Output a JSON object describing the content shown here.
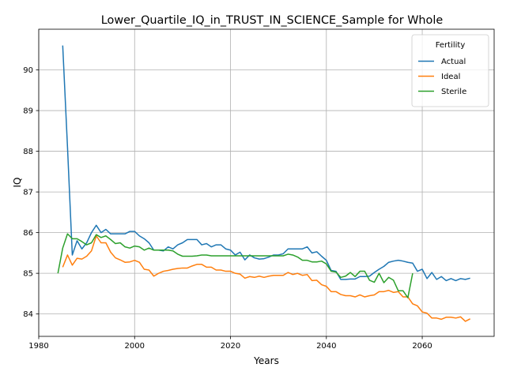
{
  "chart_data": {
    "type": "line",
    "title": "Lower_Quartile_IQ_in_TRUST_IN_SCIENCE_Sample for Whole",
    "xlabel": "Years",
    "ylabel": "IQ",
    "xlim": [
      1980,
      2075
    ],
    "ylim": [
      83.45,
      91.0
    ],
    "xticks": [
      1980,
      2000,
      2020,
      2040,
      2060
    ],
    "yticks": [
      84,
      85,
      86,
      87,
      88,
      89,
      90
    ],
    "grid": true,
    "legend": {
      "title": "Fertility",
      "placement": "top-right"
    },
    "series": [
      {
        "name": "Actual",
        "color": "#1f77b4",
        "points": [
          [
            1985,
            90.6
          ],
          [
            1986,
            88.1
          ],
          [
            1987,
            85.45
          ],
          [
            1988,
            85.8
          ],
          [
            1989,
            85.6
          ],
          [
            1990,
            85.75
          ],
          [
            1991,
            86.0
          ],
          [
            1992,
            86.18
          ],
          [
            1993,
            86.0
          ],
          [
            1994,
            86.08
          ],
          [
            1995,
            85.97
          ],
          [
            1996,
            85.97
          ],
          [
            1997,
            85.97
          ],
          [
            1998,
            85.97
          ],
          [
            1999,
            86.03
          ],
          [
            2000,
            86.03
          ],
          [
            2001,
            85.92
          ],
          [
            2002,
            85.85
          ],
          [
            2003,
            85.75
          ],
          [
            2004,
            85.57
          ],
          [
            2005,
            85.57
          ],
          [
            2006,
            85.55
          ],
          [
            2007,
            85.65
          ],
          [
            2008,
            85.6
          ],
          [
            2009,
            85.7
          ],
          [
            2010,
            85.75
          ],
          [
            2011,
            85.83
          ],
          [
            2012,
            85.83
          ],
          [
            2013,
            85.83
          ],
          [
            2014,
            85.7
          ],
          [
            2015,
            85.73
          ],
          [
            2016,
            85.65
          ],
          [
            2017,
            85.7
          ],
          [
            2018,
            85.7
          ],
          [
            2019,
            85.6
          ],
          [
            2020,
            85.57
          ],
          [
            2021,
            85.45
          ],
          [
            2022,
            85.52
          ],
          [
            2023,
            85.33
          ],
          [
            2024,
            85.45
          ],
          [
            2025,
            85.38
          ],
          [
            2026,
            85.35
          ],
          [
            2027,
            85.36
          ],
          [
            2028,
            85.4
          ],
          [
            2029,
            85.45
          ],
          [
            2030,
            85.45
          ],
          [
            2031,
            85.48
          ],
          [
            2032,
            85.6
          ],
          [
            2033,
            85.6
          ],
          [
            2034,
            85.6
          ],
          [
            2035,
            85.6
          ],
          [
            2036,
            85.65
          ],
          [
            2037,
            85.5
          ],
          [
            2038,
            85.53
          ],
          [
            2039,
            85.42
          ],
          [
            2040,
            85.32
          ],
          [
            2041,
            85.07
          ],
          [
            2042,
            85.05
          ],
          [
            2043,
            84.85
          ],
          [
            2044,
            84.85
          ],
          [
            2045,
            84.86
          ],
          [
            2046,
            84.86
          ],
          [
            2047,
            84.92
          ],
          [
            2048,
            84.92
          ],
          [
            2049,
            84.93
          ],
          [
            2050,
            85.02
          ],
          [
            2051,
            85.1
          ],
          [
            2052,
            85.17
          ],
          [
            2053,
            85.27
          ],
          [
            2054,
            85.3
          ],
          [
            2055,
            85.32
          ],
          [
            2056,
            85.3
          ],
          [
            2057,
            85.27
          ],
          [
            2058,
            85.25
          ],
          [
            2059,
            85.05
          ],
          [
            2060,
            85.1
          ],
          [
            2061,
            84.87
          ],
          [
            2062,
            85.02
          ],
          [
            2063,
            84.85
          ],
          [
            2064,
            84.92
          ],
          [
            2065,
            84.82
          ],
          [
            2066,
            84.87
          ],
          [
            2067,
            84.82
          ],
          [
            2068,
            84.87
          ],
          [
            2069,
            84.85
          ],
          [
            2070,
            84.88
          ]
        ]
      },
      {
        "name": "Ideal",
        "color": "#ff7f0e",
        "points": [
          [
            1985,
            85.15
          ],
          [
            1986,
            85.45
          ],
          [
            1987,
            85.2
          ],
          [
            1988,
            85.37
          ],
          [
            1989,
            85.35
          ],
          [
            1990,
            85.42
          ],
          [
            1991,
            85.55
          ],
          [
            1992,
            85.92
          ],
          [
            1993,
            85.75
          ],
          [
            1994,
            85.75
          ],
          [
            1995,
            85.52
          ],
          [
            1996,
            85.38
          ],
          [
            1997,
            85.33
          ],
          [
            1998,
            85.27
          ],
          [
            1999,
            85.28
          ],
          [
            2000,
            85.32
          ],
          [
            2001,
            85.27
          ],
          [
            2002,
            85.1
          ],
          [
            2003,
            85.08
          ],
          [
            2004,
            84.93
          ],
          [
            2005,
            85.0
          ],
          [
            2006,
            85.05
          ],
          [
            2007,
            85.07
          ],
          [
            2008,
            85.1
          ],
          [
            2009,
            85.12
          ],
          [
            2010,
            85.13
          ],
          [
            2011,
            85.13
          ],
          [
            2012,
            85.18
          ],
          [
            2013,
            85.22
          ],
          [
            2014,
            85.22
          ],
          [
            2015,
            85.15
          ],
          [
            2016,
            85.15
          ],
          [
            2017,
            85.08
          ],
          [
            2018,
            85.08
          ],
          [
            2019,
            85.05
          ],
          [
            2020,
            85.05
          ],
          [
            2021,
            85.0
          ],
          [
            2022,
            84.98
          ],
          [
            2023,
            84.88
          ],
          [
            2024,
            84.92
          ],
          [
            2025,
            84.9
          ],
          [
            2026,
            84.93
          ],
          [
            2027,
            84.9
          ],
          [
            2028,
            84.93
          ],
          [
            2029,
            84.95
          ],
          [
            2030,
            84.95
          ],
          [
            2031,
            84.95
          ],
          [
            2032,
            85.02
          ],
          [
            2033,
            84.97
          ],
          [
            2034,
            85.0
          ],
          [
            2035,
            84.95
          ],
          [
            2036,
            84.97
          ],
          [
            2037,
            84.82
          ],
          [
            2038,
            84.83
          ],
          [
            2039,
            84.72
          ],
          [
            2040,
            84.68
          ],
          [
            2041,
            84.55
          ],
          [
            2042,
            84.55
          ],
          [
            2043,
            84.48
          ],
          [
            2044,
            84.45
          ],
          [
            2045,
            84.45
          ],
          [
            2046,
            84.42
          ],
          [
            2047,
            84.47
          ],
          [
            2048,
            84.42
          ],
          [
            2049,
            84.45
          ],
          [
            2050,
            84.47
          ],
          [
            2051,
            84.55
          ],
          [
            2052,
            84.55
          ],
          [
            2053,
            84.58
          ],
          [
            2054,
            84.53
          ],
          [
            2055,
            84.55
          ],
          [
            2056,
            84.42
          ],
          [
            2057,
            84.42
          ],
          [
            2058,
            84.25
          ],
          [
            2059,
            84.2
          ],
          [
            2060,
            84.05
          ],
          [
            2061,
            84.02
          ],
          [
            2062,
            83.9
          ],
          [
            2063,
            83.9
          ],
          [
            2064,
            83.87
          ],
          [
            2065,
            83.92
          ],
          [
            2066,
            83.92
          ],
          [
            2067,
            83.9
          ],
          [
            2068,
            83.93
          ],
          [
            2069,
            83.82
          ],
          [
            2070,
            83.88
          ]
        ]
      },
      {
        "name": "Sterile",
        "color": "#2ca02c",
        "points": [
          [
            1984,
            85.0
          ],
          [
            1985,
            85.62
          ],
          [
            1986,
            85.97
          ],
          [
            1987,
            85.85
          ],
          [
            1988,
            85.85
          ],
          [
            1989,
            85.78
          ],
          [
            1990,
            85.7
          ],
          [
            1991,
            85.75
          ],
          [
            1992,
            85.95
          ],
          [
            1993,
            85.88
          ],
          [
            1994,
            85.92
          ],
          [
            1995,
            85.83
          ],
          [
            1996,
            85.73
          ],
          [
            1997,
            85.75
          ],
          [
            1998,
            85.65
          ],
          [
            1999,
            85.62
          ],
          [
            2000,
            85.67
          ],
          [
            2001,
            85.65
          ],
          [
            2002,
            85.57
          ],
          [
            2003,
            85.62
          ],
          [
            2004,
            85.57
          ],
          [
            2005,
            85.57
          ],
          [
            2006,
            85.57
          ],
          [
            2007,
            85.57
          ],
          [
            2008,
            85.55
          ],
          [
            2009,
            85.47
          ],
          [
            2010,
            85.42
          ],
          [
            2011,
            85.42
          ],
          [
            2012,
            85.42
          ],
          [
            2013,
            85.43
          ],
          [
            2014,
            85.45
          ],
          [
            2015,
            85.45
          ],
          [
            2016,
            85.43
          ],
          [
            2017,
            85.43
          ],
          [
            2018,
            85.43
          ],
          [
            2019,
            85.43
          ],
          [
            2020,
            85.43
          ],
          [
            2021,
            85.43
          ],
          [
            2022,
            85.43
          ],
          [
            2023,
            85.43
          ],
          [
            2024,
            85.43
          ],
          [
            2025,
            85.43
          ],
          [
            2026,
            85.43
          ],
          [
            2027,
            85.43
          ],
          [
            2028,
            85.43
          ],
          [
            2029,
            85.43
          ],
          [
            2030,
            85.43
          ],
          [
            2031,
            85.43
          ],
          [
            2032,
            85.47
          ],
          [
            2033,
            85.45
          ],
          [
            2034,
            85.4
          ],
          [
            2035,
            85.32
          ],
          [
            2036,
            85.32
          ],
          [
            2037,
            85.28
          ],
          [
            2038,
            85.28
          ],
          [
            2039,
            85.3
          ],
          [
            2040,
            85.23
          ],
          [
            2041,
            85.05
          ],
          [
            2042,
            85.03
          ],
          [
            2043,
            84.9
          ],
          [
            2044,
            84.93
          ],
          [
            2045,
            85.02
          ],
          [
            2046,
            84.92
          ],
          [
            2047,
            85.05
          ],
          [
            2048,
            85.05
          ],
          [
            2049,
            84.83
          ],
          [
            2050,
            84.78
          ],
          [
            2051,
            85.0
          ],
          [
            2052,
            84.77
          ],
          [
            2053,
            84.9
          ],
          [
            2054,
            84.83
          ],
          [
            2055,
            84.57
          ],
          [
            2056,
            84.57
          ],
          [
            2057,
            84.4
          ],
          [
            2058,
            85.0
          ]
        ]
      }
    ]
  }
}
